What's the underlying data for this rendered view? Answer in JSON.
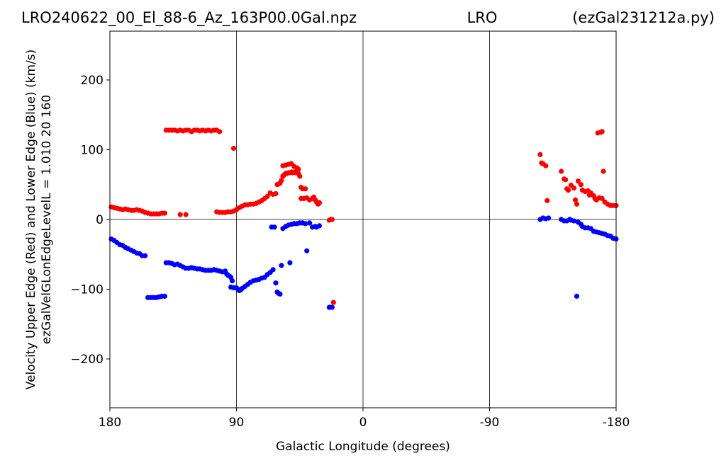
{
  "chart_data": {
    "type": "scatter",
    "title_left": "LRO240622_00_El_88-6_Az_163P00.0Gal.npz",
    "title_center": "LRO",
    "title_right": "(ezGal231212a.py)",
    "xlabel": "Galactic Longitude (degrees)",
    "ylabel_line1": "Velocity Upper Edge (Red) and Lower Edge (Blue)  (km/s)",
    "ylabel_line2": "ezGalVelGLonEdgeLevelL = 1.010  20  160",
    "xlim": [
      180,
      -180
    ],
    "ylim": [
      -270,
      270
    ],
    "xticks": [
      180,
      90,
      0,
      -90,
      -180
    ],
    "xtick_labels": [
      "180",
      "90",
      "0",
      "-90",
      "-180"
    ],
    "yticks": [
      200,
      100,
      0,
      -100,
      -200
    ],
    "ytick_labels": [
      "200",
      "100",
      "0",
      "−100",
      "−200"
    ],
    "grid": "vertical lines at x ticks, horizontal line at y=0",
    "colors": {
      "upper": "#ff0000",
      "lower": "#0000ff"
    },
    "series": [
      {
        "color": "#ff0000",
        "points": [
          [
            179,
            18
          ],
          [
            177,
            17
          ],
          [
            175,
            16
          ],
          [
            173,
            15
          ],
          [
            171,
            14
          ],
          [
            169,
            15
          ],
          [
            167,
            14
          ],
          [
            165,
            13
          ],
          [
            163,
            13
          ],
          [
            161,
            14
          ],
          [
            159,
            13
          ],
          [
            157,
            12
          ],
          [
            155,
            10
          ],
          [
            153,
            9
          ],
          [
            151,
            8
          ],
          [
            149,
            8
          ],
          [
            147,
            8
          ],
          [
            145,
            8
          ],
          [
            143,
            9
          ],
          [
            141,
            9
          ],
          [
            140,
            128
          ],
          [
            138,
            128
          ],
          [
            136,
            128
          ],
          [
            134,
            128
          ],
          [
            132,
            127
          ],
          [
            130,
            128
          ],
          [
            128,
            127
          ],
          [
            126,
            128
          ],
          [
            124,
            128
          ],
          [
            122,
            126
          ],
          [
            120,
            128
          ],
          [
            118,
            128
          ],
          [
            116,
            127
          ],
          [
            114,
            128
          ],
          [
            112,
            127
          ],
          [
            110,
            128
          ],
          [
            108,
            127
          ],
          [
            106,
            128
          ],
          [
            104,
            128
          ],
          [
            102,
            126
          ],
          [
            130,
            7
          ],
          [
            126,
            7
          ],
          [
            92,
            102
          ],
          [
            104,
            11
          ],
          [
            102,
            10
          ],
          [
            100,
            10
          ],
          [
            98,
            10
          ],
          [
            96,
            11
          ],
          [
            94,
            11
          ],
          [
            92,
            12
          ],
          [
            90,
            14
          ],
          [
            88,
            17
          ],
          [
            86,
            19
          ],
          [
            84,
            21
          ],
          [
            82,
            21
          ],
          [
            80,
            22
          ],
          [
            78,
            22
          ],
          [
            76,
            23
          ],
          [
            74,
            25
          ],
          [
            72,
            27
          ],
          [
            70,
            30
          ],
          [
            68,
            33
          ],
          [
            66,
            38
          ],
          [
            64,
            36
          ],
          [
            62,
            37
          ],
          [
            61,
            50
          ],
          [
            60,
            51
          ],
          [
            59,
            52
          ],
          [
            58,
            56
          ],
          [
            57,
            62
          ],
          [
            56,
            64
          ],
          [
            55,
            66
          ],
          [
            54,
            66
          ],
          [
            53,
            67
          ],
          [
            52,
            67
          ],
          [
            51,
            68
          ],
          [
            50,
            67
          ],
          [
            49,
            68
          ],
          [
            48,
            67
          ],
          [
            47,
            68
          ],
          [
            46,
            66
          ],
          [
            45,
            62
          ],
          [
            57,
            77
          ],
          [
            55,
            78
          ],
          [
            53,
            79
          ],
          [
            51,
            80
          ],
          [
            49,
            76
          ],
          [
            47,
            74
          ],
          [
            46,
            72
          ],
          [
            44,
            46
          ],
          [
            43,
            44
          ],
          [
            41,
            44
          ],
          [
            44,
            30
          ],
          [
            42,
            30
          ],
          [
            40,
            31
          ],
          [
            38,
            28
          ],
          [
            36,
            30
          ],
          [
            35,
            32
          ],
          [
            34,
            28
          ],
          [
            33,
            25
          ],
          [
            32,
            22
          ],
          [
            31,
            24
          ],
          [
            24,
            -1
          ],
          [
            23,
            0
          ],
          [
            22,
            0
          ],
          [
            21,
            -119
          ],
          [
            -126,
            93
          ],
          [
            -127,
            81
          ],
          [
            -128,
            80
          ],
          [
            -130,
            77
          ],
          [
            -131,
            27
          ],
          [
            -141,
            69
          ],
          [
            -143,
            58
          ],
          [
            -144,
            57
          ],
          [
            -145,
            44
          ],
          [
            -146,
            42
          ],
          [
            -148,
            49
          ],
          [
            -150,
            45
          ],
          [
            -151,
            28
          ],
          [
            -152,
            22
          ],
          [
            -153,
            55
          ],
          [
            -155,
            50
          ],
          [
            -156,
            42
          ],
          [
            -158,
            40
          ],
          [
            -160,
            41
          ],
          [
            -161,
            35
          ],
          [
            -162,
            38
          ],
          [
            -164,
            34
          ],
          [
            -165,
            30
          ],
          [
            -166,
            28
          ],
          [
            -168,
            31
          ],
          [
            -170,
            30
          ],
          [
            -167,
            124
          ],
          [
            -169,
            125
          ],
          [
            -170,
            126
          ],
          [
            -171,
            69
          ],
          [
            -172,
            25
          ],
          [
            -174,
            22
          ],
          [
            -176,
            20
          ],
          [
            -178,
            20
          ],
          [
            -180,
            20
          ]
        ]
      },
      {
        "color": "#0000ff",
        "points": [
          [
            179,
            -28
          ],
          [
            177,
            -30
          ],
          [
            175,
            -33
          ],
          [
            173,
            -36
          ],
          [
            171,
            -37
          ],
          [
            169,
            -40
          ],
          [
            167,
            -42
          ],
          [
            165,
            -44
          ],
          [
            163,
            -46
          ],
          [
            161,
            -48
          ],
          [
            159,
            -49
          ],
          [
            157,
            -52
          ],
          [
            155,
            -52
          ],
          [
            153,
            -112
          ],
          [
            151,
            -112
          ],
          [
            149,
            -112
          ],
          [
            147,
            -112
          ],
          [
            145,
            -111
          ],
          [
            143,
            -110
          ],
          [
            141,
            -110
          ],
          [
            140,
            -62
          ],
          [
            138,
            -62
          ],
          [
            136,
            -63
          ],
          [
            134,
            -65
          ],
          [
            132,
            -64
          ],
          [
            130,
            -66
          ],
          [
            128,
            -68
          ],
          [
            126,
            -70
          ],
          [
            124,
            -70
          ],
          [
            122,
            -69
          ],
          [
            120,
            -70
          ],
          [
            118,
            -71
          ],
          [
            116,
            -71
          ],
          [
            114,
            -72
          ],
          [
            112,
            -73
          ],
          [
            110,
            -73
          ],
          [
            108,
            -73
          ],
          [
            106,
            -72
          ],
          [
            104,
            -73
          ],
          [
            102,
            -74
          ],
          [
            100,
            -75
          ],
          [
            98,
            -74
          ],
          [
            97,
            -78
          ],
          [
            96,
            -80
          ],
          [
            95,
            -81
          ],
          [
            94,
            -83
          ],
          [
            93,
            -88
          ],
          [
            94,
            -97
          ],
          [
            92,
            -98
          ],
          [
            90,
            -98
          ],
          [
            89,
            -100
          ],
          [
            88,
            -102
          ],
          [
            87,
            -101
          ],
          [
            86,
            -99
          ],
          [
            84,
            -96
          ],
          [
            82,
            -93
          ],
          [
            80,
            -90
          ],
          [
            78,
            -88
          ],
          [
            76,
            -87
          ],
          [
            74,
            -86
          ],
          [
            72,
            -84
          ],
          [
            70,
            -83
          ],
          [
            68,
            -79
          ],
          [
            66,
            -76
          ],
          [
            64,
            -72
          ],
          [
            65,
            -11
          ],
          [
            63,
            -11
          ],
          [
            62,
            -91
          ],
          [
            61,
            -104
          ],
          [
            60,
            -106
          ],
          [
            59,
            -107
          ],
          [
            58,
            -66
          ],
          [
            57,
            -13
          ],
          [
            55,
            -10
          ],
          [
            53,
            -8
          ],
          [
            52,
            -62
          ],
          [
            51,
            -7
          ],
          [
            49,
            -6
          ],
          [
            47,
            -6
          ],
          [
            45,
            -5
          ],
          [
            43,
            -5
          ],
          [
            41,
            -6
          ],
          [
            40,
            -45
          ],
          [
            38,
            -5
          ],
          [
            36,
            -11
          ],
          [
            34,
            -10
          ],
          [
            33,
            -11
          ],
          [
            31,
            -9
          ],
          [
            24,
            -126
          ],
          [
            23,
            -126
          ],
          [
            22,
            -126
          ],
          [
            -126,
            0
          ],
          [
            -128,
            2
          ],
          [
            -130,
            1
          ],
          [
            -132,
            2
          ],
          [
            -141,
            0
          ],
          [
            -143,
            -2
          ],
          [
            -145,
            -2
          ],
          [
            -147,
            0
          ],
          [
            -148,
            -1
          ],
          [
            -150,
            -2
          ],
          [
            -152,
            -110
          ],
          [
            -153,
            -4
          ],
          [
            -155,
            -7
          ],
          [
            -156,
            -10
          ],
          [
            -158,
            -12
          ],
          [
            -160,
            -12
          ],
          [
            -162,
            -13
          ],
          [
            -164,
            -17
          ],
          [
            -166,
            -18
          ],
          [
            -168,
            -19
          ],
          [
            -170,
            -20
          ],
          [
            -172,
            -21
          ],
          [
            -174,
            -23
          ],
          [
            -176,
            -24
          ],
          [
            -178,
            -27
          ],
          [
            -180,
            -28
          ]
        ]
      }
    ]
  }
}
